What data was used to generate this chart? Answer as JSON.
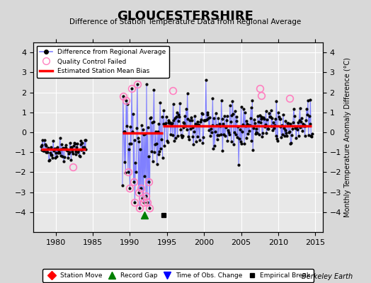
{
  "title": "GLOUCESTERSHIRE",
  "subtitle": "Difference of Station Temperature Data from Regional Average",
  "ylabel_right": "Monthly Temperature Anomaly Difference (°C)",
  "xlim": [
    1977,
    2016
  ],
  "ylim": [
    -5,
    4.5
  ],
  "yticks": [
    -4,
    -3,
    -2,
    -1,
    0,
    1,
    2,
    3,
    4
  ],
  "xticks": [
    1980,
    1985,
    1990,
    1995,
    2000,
    2005,
    2010,
    2015
  ],
  "bg_color": "#d8d8d8",
  "plot_bg": "#e8e8e8",
  "grid_color": "white",
  "watermark": "Berkeley Earth",
  "segment1_x_start": 1978.0,
  "segment1_x_end": 1984.0,
  "segment1_bias": -0.85,
  "segment2_x_start": 1989.0,
  "segment2_x_end": 1994.42,
  "segment2_bias": -0.05,
  "segment3_x_start": 1994.42,
  "segment3_x_end": 2014.5,
  "segment3_bias": 0.3,
  "record_gap_x": 1992.0,
  "record_gap_y": -4.15,
  "empirical_break_x": 1994.5,
  "empirical_break_y": -4.15,
  "qc_failed_color": "#ff80c0",
  "line_color": "#8080ff",
  "dot_color": "black",
  "bias_line_color": "red",
  "seed": 42
}
